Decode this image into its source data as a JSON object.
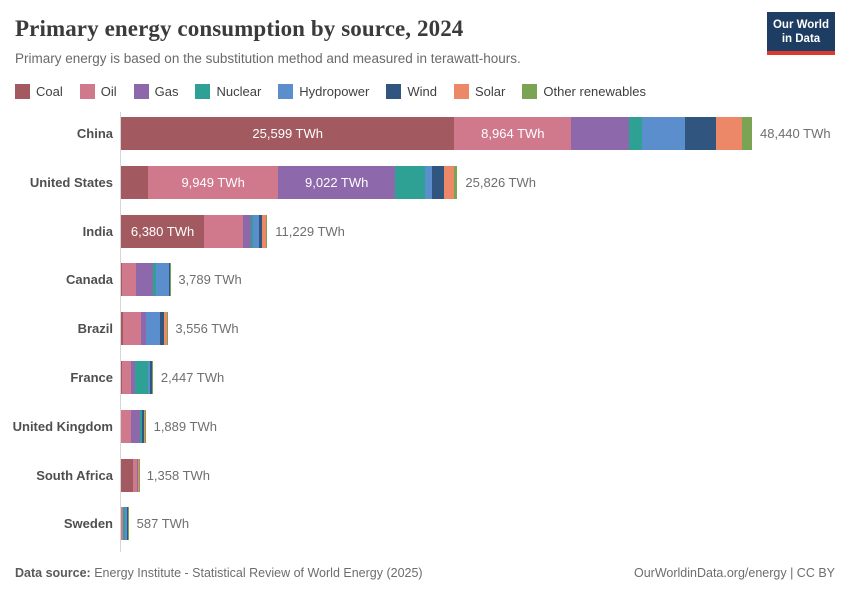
{
  "header": {
    "title": "Primary energy consumption by source, 2024",
    "subtitle": "Primary energy is based on the substitution method and measured in terawatt-hours.",
    "logo": {
      "line1": "Our World",
      "line2": "in Data",
      "bg_color": "#1d3d63",
      "accent_color": "#dc3a2e"
    }
  },
  "chart_data": {
    "type": "bar",
    "variant": "horizontal-stacked",
    "unit": "TWh",
    "grid": false,
    "legend_position": "top",
    "xlim": [
      0,
      48440
    ],
    "categories": [
      "China",
      "United States",
      "India",
      "Canada",
      "Brazil",
      "France",
      "United Kingdom",
      "South Africa",
      "Sweden"
    ],
    "series": [
      {
        "name": "Coal",
        "color": "#a2595f",
        "values": [
          25599,
          2100,
          6380,
          100,
          170,
          40,
          25,
          950,
          15
        ]
      },
      {
        "name": "Oil",
        "color": "#d0788c",
        "values": [
          8964,
          9949,
          2960,
          1080,
          1380,
          740,
          740,
          300,
          130
        ]
      },
      {
        "name": "Gas",
        "color": "#8d68ab",
        "values": [
          4400,
          9022,
          640,
          1290,
          340,
          300,
          700,
          35,
          5
        ]
      },
      {
        "name": "Nuclear",
        "color": "#2fa094",
        "values": [
          1000,
          2230,
          150,
          250,
          40,
          980,
          120,
          25,
          130
        ]
      },
      {
        "name": "Hydropower",
        "color": "#5b8ecd",
        "values": [
          3310,
          600,
          440,
          950,
          1090,
          150,
          15,
          2,
          160
        ]
      },
      {
        "name": "Wind",
        "color": "#30567f",
        "values": [
          2380,
          900,
          230,
          80,
          290,
          160,
          190,
          25,
          90
        ]
      },
      {
        "name": "Solar",
        "color": "#ec8768",
        "values": [
          2030,
          800,
          330,
          25,
          200,
          50,
          40,
          15,
          10
        ]
      },
      {
        "name": "Other renewables",
        "color": "#7aa354",
        "values": [
          757,
          225,
          99,
          14,
          46,
          27,
          59,
          6,
          47
        ]
      }
    ],
    "totals": [
      48440,
      25826,
      11229,
      3789,
      3556,
      2447,
      1889,
      1358,
      587
    ],
    "total_labels": [
      "48,440 TWh",
      "25,826 TWh",
      "11,229 TWh",
      "3,789 TWh",
      "3,556 TWh",
      "2,447 TWh",
      "1,889 TWh",
      "1,358 TWh",
      "587 TWh"
    ],
    "bar_labels": [
      {
        "country": "China",
        "source": "Coal",
        "text": "25,599 TWh"
      },
      {
        "country": "China",
        "source": "Oil",
        "text": "8,964 TWh"
      },
      {
        "country": "United States",
        "source": "Oil",
        "text": "9,949 TWh"
      },
      {
        "country": "United States",
        "source": "Gas",
        "text": "9,022 TWh"
      },
      {
        "country": "India",
        "source": "Coal",
        "text": "6,380 TWh"
      }
    ]
  },
  "footer": {
    "source_label": "Data source:",
    "source_text": " Energy Institute - Statistical Review of World Energy (2025)",
    "right_text": "OurWorldinData.org/energy | CC BY"
  }
}
